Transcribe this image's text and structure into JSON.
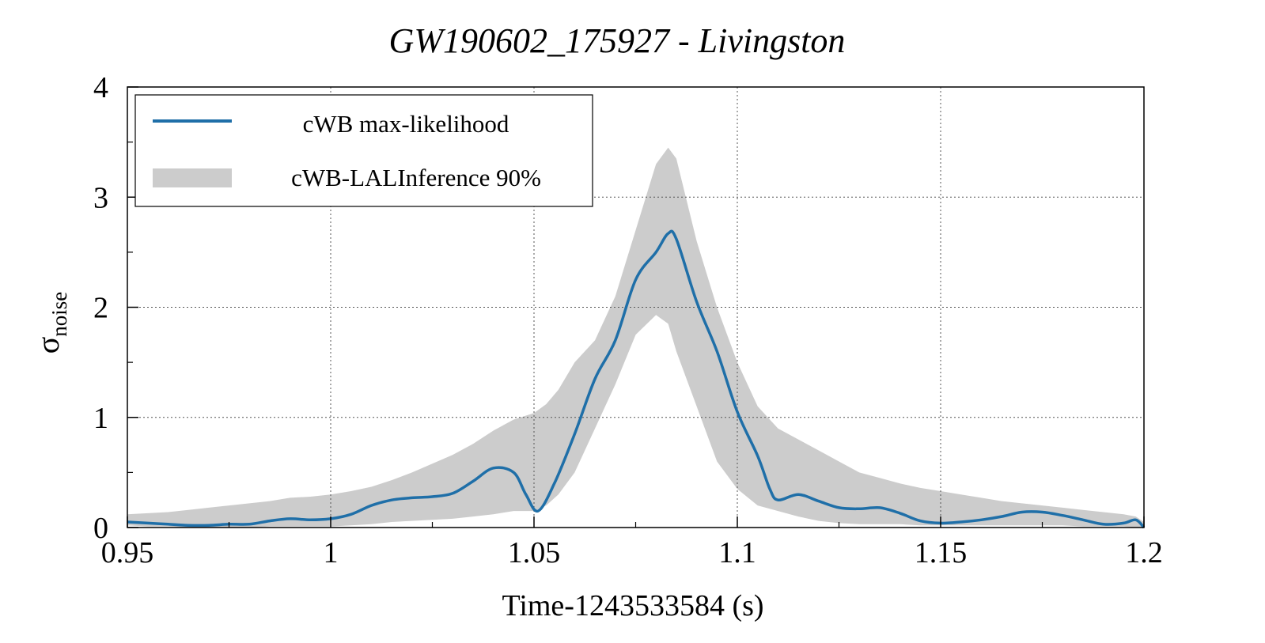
{
  "colors": {
    "line": "#1f6fa8",
    "band": "#cccccc",
    "grid": "#555555",
    "axis": "#000000"
  },
  "chart_data": {
    "type": "line",
    "title": "GW190602_175927 - Livingston",
    "xlabel": "Time-1243533584 (s)",
    "ylabel_main": "σ",
    "ylabel_sub": "noise",
    "xlim": [
      0.95,
      1.2
    ],
    "ylim": [
      0,
      4
    ],
    "xticks": [
      0.95,
      1.0,
      1.05,
      1.1,
      1.15,
      1.2
    ],
    "xtick_labels": [
      "0.95",
      "1",
      "1.05",
      "1.1",
      "1.15",
      "1.2"
    ],
    "yticks": [
      0,
      1,
      2,
      3,
      4
    ],
    "ytick_labels": [
      "0",
      "1",
      "2",
      "3",
      "4"
    ],
    "grid": true,
    "legend": {
      "placement": "top-left",
      "entries": [
        "cWB max-likelihood",
        "cWB-LALInference 90%"
      ]
    },
    "series": [
      {
        "name": "cWB max-likelihood",
        "x": [
          0.95,
          0.955,
          0.96,
          0.965,
          0.97,
          0.975,
          0.98,
          0.985,
          0.99,
          0.995,
          1.0,
          1.005,
          1.01,
          1.015,
          1.02,
          1.025,
          1.03,
          1.035,
          1.04,
          1.045,
          1.048,
          1.051,
          1.055,
          1.06,
          1.065,
          1.07,
          1.075,
          1.08,
          1.083,
          1.085,
          1.09,
          1.095,
          1.1,
          1.105,
          1.108,
          1.11,
          1.115,
          1.12,
          1.125,
          1.13,
          1.135,
          1.14,
          1.145,
          1.15,
          1.155,
          1.16,
          1.165,
          1.17,
          1.175,
          1.18,
          1.185,
          1.19,
          1.195,
          1.198,
          1.2
        ],
        "y": [
          0.05,
          0.04,
          0.03,
          0.02,
          0.02,
          0.03,
          0.03,
          0.06,
          0.08,
          0.07,
          0.08,
          0.12,
          0.2,
          0.25,
          0.27,
          0.28,
          0.31,
          0.42,
          0.54,
          0.5,
          0.3,
          0.15,
          0.4,
          0.85,
          1.35,
          1.7,
          2.25,
          2.5,
          2.67,
          2.62,
          2.05,
          1.6,
          1.05,
          0.65,
          0.35,
          0.25,
          0.3,
          0.24,
          0.18,
          0.17,
          0.18,
          0.13,
          0.06,
          0.04,
          0.05,
          0.07,
          0.1,
          0.14,
          0.14,
          0.11,
          0.07,
          0.03,
          0.04,
          0.07,
          0.0
        ]
      },
      {
        "name": "cWB-LALInference 90%",
        "x": [
          0.95,
          0.955,
          0.96,
          0.965,
          0.97,
          0.975,
          0.98,
          0.985,
          0.99,
          0.995,
          1.0,
          1.005,
          1.01,
          1.015,
          1.02,
          1.025,
          1.03,
          1.035,
          1.04,
          1.045,
          1.05,
          1.053,
          1.056,
          1.06,
          1.065,
          1.07,
          1.075,
          1.08,
          1.083,
          1.085,
          1.09,
          1.095,
          1.1,
          1.105,
          1.11,
          1.115,
          1.12,
          1.125,
          1.13,
          1.135,
          1.14,
          1.145,
          1.15,
          1.155,
          1.16,
          1.165,
          1.17,
          1.175,
          1.18,
          1.185,
          1.19,
          1.195,
          1.198,
          1.2
        ],
        "lower": [
          0.02,
          0.01,
          0.01,
          0.0,
          0.0,
          0.0,
          0.0,
          0.01,
          0.01,
          0.01,
          0.01,
          0.02,
          0.03,
          0.05,
          0.06,
          0.07,
          0.08,
          0.1,
          0.12,
          0.15,
          0.15,
          0.2,
          0.3,
          0.5,
          0.9,
          1.3,
          1.75,
          1.93,
          1.85,
          1.6,
          1.1,
          0.6,
          0.35,
          0.2,
          0.15,
          0.1,
          0.06,
          0.04,
          0.03,
          0.03,
          0.03,
          0.02,
          0.02,
          0.02,
          0.02,
          0.02,
          0.02,
          0.02,
          0.02,
          0.01,
          0.01,
          0.01,
          0.0,
          0.0
        ],
        "upper": [
          0.12,
          0.13,
          0.14,
          0.16,
          0.18,
          0.2,
          0.22,
          0.24,
          0.27,
          0.28,
          0.3,
          0.33,
          0.37,
          0.43,
          0.5,
          0.58,
          0.66,
          0.76,
          0.88,
          0.98,
          1.04,
          1.12,
          1.25,
          1.5,
          1.7,
          2.1,
          2.7,
          3.3,
          3.45,
          3.35,
          2.6,
          2.0,
          1.5,
          1.1,
          0.9,
          0.8,
          0.7,
          0.6,
          0.5,
          0.45,
          0.4,
          0.36,
          0.33,
          0.3,
          0.27,
          0.24,
          0.22,
          0.2,
          0.18,
          0.16,
          0.14,
          0.12,
          0.1,
          0.05
        ]
      }
    ]
  }
}
